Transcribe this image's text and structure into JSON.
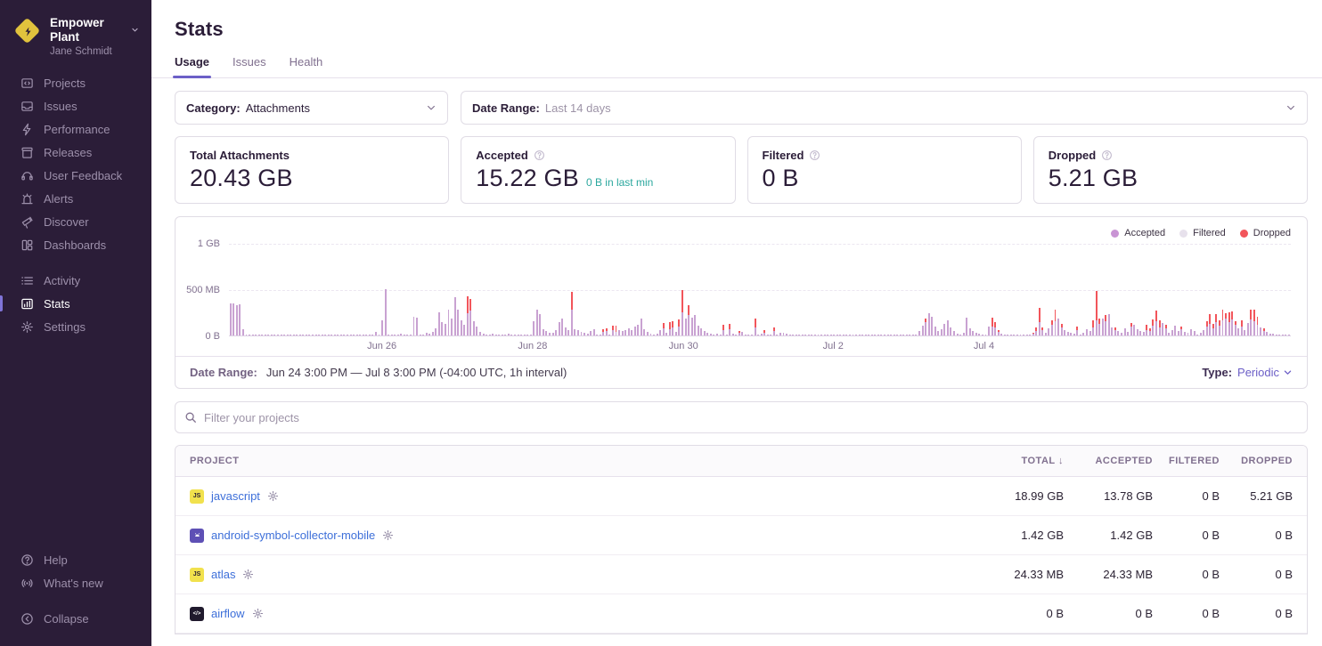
{
  "sidebar": {
    "org_name": "Empower Plant",
    "user_name": "Jane Schmidt",
    "items": [
      {
        "label": "Projects",
        "icon": "projects-icon"
      },
      {
        "label": "Issues",
        "icon": "issues-icon"
      },
      {
        "label": "Performance",
        "icon": "performance-icon"
      },
      {
        "label": "Releases",
        "icon": "releases-icon"
      },
      {
        "label": "User Feedback",
        "icon": "user-feedback-icon"
      },
      {
        "label": "Alerts",
        "icon": "alerts-icon"
      },
      {
        "label": "Discover",
        "icon": "discover-icon"
      },
      {
        "label": "Dashboards",
        "icon": "dashboards-icon"
      }
    ],
    "secondary_items": [
      {
        "label": "Activity",
        "icon": "activity-icon"
      },
      {
        "label": "Stats",
        "icon": "stats-icon",
        "active": true
      },
      {
        "label": "Settings",
        "icon": "settings-icon"
      }
    ],
    "footer_items": [
      {
        "label": "Help",
        "icon": "help-icon"
      },
      {
        "label": "What's new",
        "icon": "whats-new-icon"
      }
    ],
    "collapse_label": "Collapse"
  },
  "header": {
    "title": "Stats",
    "tabs": [
      {
        "label": "Usage",
        "active": true
      },
      {
        "label": "Issues"
      },
      {
        "label": "Health"
      }
    ]
  },
  "filters": {
    "category_label": "Category:",
    "category_value": "Attachments",
    "daterange_label": "Date Range:",
    "daterange_value": "Last 14 days"
  },
  "cards": [
    {
      "label": "Total Attachments",
      "value": "20.43 GB",
      "help": false
    },
    {
      "label": "Accepted",
      "value": "15.22 GB",
      "sub": "0 B in last min",
      "help": true
    },
    {
      "label": "Filtered",
      "value": "0 B",
      "help": true
    },
    {
      "label": "Dropped",
      "value": "5.21 GB",
      "help": true
    }
  ],
  "chart_data": {
    "type": "bar",
    "stacked": true,
    "unit": "MB",
    "interval": "1h",
    "ylim": [
      0,
      1024
    ],
    "yticks": [
      "0 B",
      "500 MB",
      "1 GB"
    ],
    "xticks": [
      {
        "label": "Jun 26",
        "pos": 0.144
      },
      {
        "label": "Jun 28",
        "pos": 0.286
      },
      {
        "label": "Jun 30",
        "pos": 0.428
      },
      {
        "label": "Jul 2",
        "pos": 0.569
      },
      {
        "label": "Jul 4",
        "pos": 0.711
      }
    ],
    "legend": [
      {
        "name": "Accepted",
        "color": "#c994d4"
      },
      {
        "name": "Filtered",
        "color": "#e7e1ec"
      },
      {
        "name": "Dropped",
        "color": "#f2555b"
      }
    ],
    "series_note": "bars are [accepted_mb, dropped_mb] per hour, Jun 24 3PM - Jul 8 3PM",
    "bars": [
      [
        355,
        0
      ],
      [
        350,
        0
      ],
      [
        335,
        0
      ],
      [
        345,
        0
      ],
      [
        65,
        0
      ],
      [
        6,
        0
      ],
      [
        4,
        0
      ],
      [
        5,
        0
      ],
      [
        3,
        0
      ],
      [
        4,
        0
      ],
      [
        6,
        0
      ],
      [
        5,
        0
      ],
      [
        4,
        0
      ],
      [
        3,
        0
      ],
      [
        5,
        0
      ],
      [
        4,
        0
      ],
      [
        6,
        0
      ],
      [
        4,
        0
      ],
      [
        3,
        0
      ],
      [
        5,
        0
      ],
      [
        4,
        0
      ],
      [
        3,
        0
      ],
      [
        5,
        0
      ],
      [
        4,
        0
      ],
      [
        5,
        0
      ],
      [
        4,
        0
      ],
      [
        6,
        0
      ],
      [
        3,
        0
      ],
      [
        4,
        0
      ],
      [
        5,
        0
      ],
      [
        4,
        0
      ],
      [
        6,
        0
      ],
      [
        5,
        0
      ],
      [
        3,
        0
      ],
      [
        4,
        0
      ],
      [
        5,
        0
      ],
      [
        12,
        0
      ],
      [
        4,
        0
      ],
      [
        5,
        0
      ],
      [
        3,
        0
      ],
      [
        4,
        0
      ],
      [
        6,
        0
      ],
      [
        5,
        0
      ],
      [
        4,
        0
      ],
      [
        3,
        0
      ],
      [
        5,
        0
      ],
      [
        40,
        0
      ],
      [
        6,
        0
      ],
      [
        170,
        0
      ],
      [
        515,
        0
      ],
      [
        12,
        0
      ],
      [
        8,
        0
      ],
      [
        6,
        0
      ],
      [
        10,
        0
      ],
      [
        15,
        0
      ],
      [
        8,
        0
      ],
      [
        5,
        0
      ],
      [
        6,
        0
      ],
      [
        205,
        0
      ],
      [
        198,
        0
      ],
      [
        12,
        0
      ],
      [
        8,
        0
      ],
      [
        25,
        0
      ],
      [
        18,
        0
      ],
      [
        35,
        0
      ],
      [
        80,
        0
      ],
      [
        255,
        0
      ],
      [
        150,
        0
      ],
      [
        125,
        0
      ],
      [
        285,
        0
      ],
      [
        185,
        0
      ],
      [
        420,
        0
      ],
      [
        285,
        0
      ],
      [
        165,
        0
      ],
      [
        120,
        0
      ],
      [
        245,
        185
      ],
      [
        280,
        125
      ],
      [
        155,
        0
      ],
      [
        95,
        0
      ],
      [
        40,
        0
      ],
      [
        20,
        0
      ],
      [
        12,
        0
      ],
      [
        8,
        0
      ],
      [
        15,
        0
      ],
      [
        10,
        0
      ],
      [
        6,
        0
      ],
      [
        8,
        0
      ],
      [
        12,
        0
      ],
      [
        18,
        0
      ],
      [
        10,
        0
      ],
      [
        8,
        0
      ],
      [
        6,
        0
      ],
      [
        10,
        0
      ],
      [
        14,
        0
      ],
      [
        8,
        0
      ],
      [
        12,
        0
      ],
      [
        160,
        0
      ],
      [
        290,
        0
      ],
      [
        235,
        0
      ],
      [
        65,
        0
      ],
      [
        45,
        0
      ],
      [
        30,
        0
      ],
      [
        25,
        0
      ],
      [
        55,
        0
      ],
      [
        145,
        0
      ],
      [
        190,
        0
      ],
      [
        85,
        0
      ],
      [
        60,
        0
      ],
      [
        285,
        195
      ],
      [
        70,
        0
      ],
      [
        55,
        0
      ],
      [
        35,
        0
      ],
      [
        25,
        0
      ],
      [
        15,
        0
      ],
      [
        45,
        0
      ],
      [
        70,
        0
      ],
      [
        10,
        0
      ],
      [
        8,
        0
      ],
      [
        40,
        30
      ],
      [
        45,
        35
      ],
      [
        12,
        0
      ],
      [
        55,
        50
      ],
      [
        40,
        65
      ],
      [
        60,
        0
      ],
      [
        45,
        0
      ],
      [
        55,
        0
      ],
      [
        75,
        0
      ],
      [
        60,
        0
      ],
      [
        95,
        0
      ],
      [
        115,
        0
      ],
      [
        190,
        0
      ],
      [
        65,
        0
      ],
      [
        35,
        0
      ],
      [
        15,
        0
      ],
      [
        8,
        0
      ],
      [
        20,
        0
      ],
      [
        55,
        0
      ],
      [
        75,
        65
      ],
      [
        25,
        0
      ],
      [
        70,
        75
      ],
      [
        85,
        70
      ],
      [
        35,
        0
      ],
      [
        95,
        85
      ],
      [
        260,
        245
      ],
      [
        190,
        0
      ],
      [
        230,
        105
      ],
      [
        200,
        0
      ],
      [
        225,
        0
      ],
      [
        110,
        0
      ],
      [
        75,
        0
      ],
      [
        45,
        0
      ],
      [
        25,
        0
      ],
      [
        18,
        0
      ],
      [
        12,
        0
      ],
      [
        15,
        0
      ],
      [
        10,
        0
      ],
      [
        60,
        55
      ],
      [
        8,
        0
      ],
      [
        65,
        60
      ],
      [
        15,
        0
      ],
      [
        10,
        0
      ],
      [
        25,
        20
      ],
      [
        35,
        0
      ],
      [
        8,
        0
      ],
      [
        6,
        0
      ],
      [
        10,
        0
      ],
      [
        90,
        95
      ],
      [
        12,
        0
      ],
      [
        20,
        0
      ],
      [
        30,
        25
      ],
      [
        10,
        0
      ],
      [
        8,
        0
      ],
      [
        45,
        40
      ],
      [
        12,
        0
      ],
      [
        25,
        0
      ],
      [
        30,
        0
      ],
      [
        15,
        0
      ],
      [
        8,
        0
      ],
      [
        5,
        0
      ],
      [
        4,
        0
      ],
      [
        6,
        0
      ],
      [
        5,
        0
      ],
      [
        4,
        0
      ],
      [
        5,
        0
      ],
      [
        6,
        0
      ],
      [
        4,
        0
      ],
      [
        5,
        0
      ],
      [
        6,
        0
      ],
      [
        5,
        0
      ],
      [
        4,
        0
      ],
      [
        6,
        0
      ],
      [
        5,
        0
      ],
      [
        4,
        0
      ],
      [
        5,
        0
      ],
      [
        3,
        0
      ],
      [
        4,
        0
      ],
      [
        5,
        0
      ],
      [
        4,
        0
      ],
      [
        3,
        0
      ],
      [
        5,
        0
      ],
      [
        4,
        0
      ],
      [
        5,
        0
      ],
      [
        3,
        0
      ],
      [
        4,
        0
      ],
      [
        5,
        0
      ],
      [
        4,
        0
      ],
      [
        3,
        0
      ],
      [
        5,
        0
      ],
      [
        4,
        0
      ],
      [
        3,
        0
      ],
      [
        5,
        0
      ],
      [
        4,
        0
      ],
      [
        5,
        0
      ],
      [
        3,
        0
      ],
      [
        4,
        0
      ],
      [
        5,
        0
      ],
      [
        8,
        0
      ],
      [
        10,
        0
      ],
      [
        45,
        0
      ],
      [
        110,
        0
      ],
      [
        150,
        35
      ],
      [
        250,
        0
      ],
      [
        210,
        0
      ],
      [
        95,
        0
      ],
      [
        45,
        0
      ],
      [
        70,
        0
      ],
      [
        130,
        0
      ],
      [
        165,
        0
      ],
      [
        90,
        0
      ],
      [
        45,
        0
      ],
      [
        20,
        0
      ],
      [
        12,
        0
      ],
      [
        30,
        0
      ],
      [
        195,
        0
      ],
      [
        80,
        0
      ],
      [
        45,
        0
      ],
      [
        25,
        0
      ],
      [
        15,
        0
      ],
      [
        10,
        0
      ],
      [
        8,
        0
      ],
      [
        95,
        0
      ],
      [
        100,
        95
      ],
      [
        90,
        60
      ],
      [
        35,
        20
      ],
      [
        15,
        0
      ],
      [
        8,
        0
      ],
      [
        6,
        0
      ],
      [
        10,
        0
      ],
      [
        8,
        0
      ],
      [
        5,
        0
      ],
      [
        6,
        0
      ],
      [
        8,
        0
      ],
      [
        10,
        0
      ],
      [
        6,
        0
      ],
      [
        15,
        10
      ],
      [
        45,
        40
      ],
      [
        150,
        155
      ],
      [
        60,
        30
      ],
      [
        25,
        0
      ],
      [
        75,
        0
      ],
      [
        120,
        45
      ],
      [
        160,
        125
      ],
      [
        185,
        0
      ],
      [
        90,
        35
      ],
      [
        60,
        0
      ],
      [
        40,
        0
      ],
      [
        25,
        0
      ],
      [
        15,
        0
      ],
      [
        55,
        45
      ],
      [
        10,
        0
      ],
      [
        30,
        0
      ],
      [
        65,
        0
      ],
      [
        45,
        0
      ],
      [
        85,
        80
      ],
      [
        170,
        320
      ],
      [
        130,
        60
      ],
      [
        190,
        0
      ],
      [
        155,
        75
      ],
      [
        235,
        0
      ],
      [
        90,
        0
      ],
      [
        60,
        30
      ],
      [
        45,
        0
      ],
      [
        30,
        0
      ],
      [
        80,
        0
      ],
      [
        40,
        0
      ],
      [
        95,
        45
      ],
      [
        120,
        0
      ],
      [
        70,
        0
      ],
      [
        50,
        0
      ],
      [
        35,
        0
      ],
      [
        60,
        55
      ],
      [
        45,
        30
      ],
      [
        110,
        70
      ],
      [
        155,
        120
      ],
      [
        90,
        80
      ],
      [
        140,
        0
      ],
      [
        75,
        40
      ],
      [
        30,
        0
      ],
      [
        55,
        0
      ],
      [
        110,
        0
      ],
      [
        45,
        0
      ],
      [
        65,
        35
      ],
      [
        35,
        0
      ],
      [
        25,
        0
      ],
      [
        70,
        0
      ],
      [
        45,
        0
      ],
      [
        12,
        0
      ],
      [
        30,
        0
      ],
      [
        55,
        0
      ],
      [
        95,
        60
      ],
      [
        130,
        105
      ],
      [
        80,
        45
      ],
      [
        150,
        90
      ],
      [
        110,
        55
      ],
      [
        165,
        120
      ],
      [
        190,
        60
      ],
      [
        145,
        115
      ],
      [
        175,
        95
      ],
      [
        120,
        40
      ],
      [
        80,
        0
      ],
      [
        95,
        70
      ],
      [
        60,
        0
      ],
      [
        140,
        0
      ],
      [
        180,
        105
      ],
      [
        155,
        130
      ],
      [
        120,
        85
      ],
      [
        90,
        0
      ],
      [
        50,
        25
      ],
      [
        35,
        0
      ],
      [
        20,
        0
      ],
      [
        15,
        0
      ],
      [
        10,
        0
      ],
      [
        8,
        0
      ],
      [
        6,
        0
      ],
      [
        5,
        0
      ],
      [
        4,
        0
      ]
    ]
  },
  "chart_footer": {
    "label": "Date Range:",
    "value": "Jun 24 3:00 PM — Jul 8 3:00 PM (-04:00 UTC, 1h interval)",
    "type_label": "Type:",
    "type_value": "Periodic"
  },
  "search": {
    "placeholder": "Filter your projects"
  },
  "table": {
    "columns": [
      "PROJECT",
      "TOTAL",
      "ACCEPTED",
      "FILTERED",
      "DROPPED"
    ],
    "sort_column": "TOTAL",
    "sort_indicator": "↓",
    "rows": [
      {
        "project": "javascript",
        "platform": "javascript",
        "total": "18.99 GB",
        "accepted": "13.78 GB",
        "filtered": "0 B",
        "dropped": "5.21 GB"
      },
      {
        "project": "android-symbol-collector-mobile",
        "platform": "android",
        "total": "1.42 GB",
        "accepted": "1.42 GB",
        "filtered": "0 B",
        "dropped": "0 B"
      },
      {
        "project": "atlas",
        "platform": "javascript",
        "total": "24.33 MB",
        "accepted": "24.33 MB",
        "filtered": "0 B",
        "dropped": "0 B"
      },
      {
        "project": "airflow",
        "platform": "other",
        "total": "0 B",
        "accepted": "0 B",
        "filtered": "0 B",
        "dropped": "0 B"
      }
    ]
  }
}
